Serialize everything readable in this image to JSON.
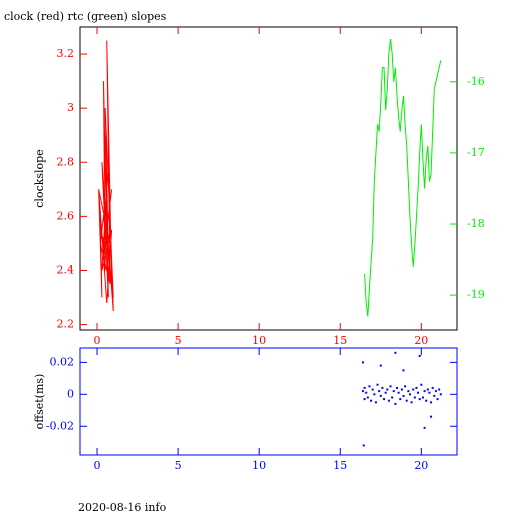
{
  "chart_data": [
    {
      "type": "line",
      "title": "clock (red) rtc (green) slopes",
      "ylabel": "clockslope",
      "xlim": [
        -1.05,
        22.2
      ],
      "xticks": [
        0,
        5,
        10,
        15,
        20
      ],
      "ylim": [
        2.18,
        3.3
      ],
      "yticks": [
        2.2,
        2.4,
        2.6,
        2.8,
        3,
        3.2
      ],
      "y2lim": [
        -19.49,
        -15.23
      ],
      "y2ticks": [
        -19,
        -18,
        -17,
        -16
      ],
      "axis_color": "red",
      "y2_color": "#00ee00",
      "frame_color": "#000000",
      "series": [
        {
          "color": "red",
          "x": [
            0.1,
            0.3,
            0.2,
            0.5,
            0.4,
            0.6,
            0.5,
            0.7,
            0.3,
            0.8,
            0.6,
            0.9,
            0.2,
            0.7,
            0.5,
            1.0,
            0.4,
            0.8,
            0.1,
            0.6,
            0.9,
            0.3,
            0.7,
            1.0,
            0.5,
            0.2,
            0.8,
            0.6,
            0.4,
            0.9
          ],
          "values": [
            2.7,
            2.3,
            2.6,
            2.4,
            3.1,
            2.5,
            2.9,
            2.3,
            2.8,
            2.4,
            3.25,
            2.35,
            2.55,
            2.45,
            3.0,
            2.3,
            2.6,
            2.5,
            2.7,
            2.28,
            2.55,
            2.4,
            2.8,
            2.25,
            2.65,
            2.5,
            2.35,
            2.6,
            2.45,
            2.7
          ]
        },
        {
          "color": "#00ee00",
          "axis": "y2",
          "x": [
            16.5,
            16.6,
            16.7,
            16.8,
            17.0,
            17.1,
            17.2,
            17.3,
            17.4,
            17.5,
            17.6,
            17.7,
            17.8,
            17.9,
            18.0,
            18.1,
            18.2,
            18.3,
            18.4,
            18.5,
            18.6,
            18.7,
            18.8,
            18.9,
            19.0,
            19.1,
            19.2,
            19.3,
            19.4,
            19.5,
            19.6,
            19.7,
            19.8,
            19.9,
            20.0,
            20.1,
            20.2,
            20.3,
            20.4,
            20.5,
            20.6,
            20.7,
            20.8,
            20.9,
            21.0,
            21.1,
            21.2
          ],
          "values": [
            -18.7,
            -19.1,
            -19.3,
            -18.9,
            -18.2,
            -17.4,
            -17.0,
            -16.6,
            -16.7,
            -16.3,
            -15.8,
            -15.8,
            -16.4,
            -16.1,
            -15.6,
            -15.4,
            -15.6,
            -16.0,
            -15.8,
            -16.2,
            -16.5,
            -16.7,
            -16.4,
            -16.2,
            -16.6,
            -16.9,
            -17.4,
            -17.9,
            -18.3,
            -18.6,
            -18.3,
            -17.9,
            -17.5,
            -17.0,
            -16.6,
            -17.1,
            -17.5,
            -17.1,
            -16.9,
            -17.4,
            -17.3,
            -16.7,
            -16.1,
            -16.0,
            -15.9,
            -15.8,
            -15.7
          ]
        }
      ]
    },
    {
      "type": "scatter",
      "ylabel": "offset(ms)",
      "xlim": [
        -1.05,
        22.2
      ],
      "xticks": [
        0,
        5,
        10,
        15,
        20
      ],
      "ylim": [
        -0.038,
        0.029
      ],
      "yticks": [
        -0.02,
        0,
        0.02
      ],
      "axis_color": "blue",
      "frame_color": "blue",
      "series": [
        {
          "color": "blue",
          "x": [
            16.4,
            16.5,
            16.5,
            16.6,
            16.7,
            16.8,
            16.9,
            17.0,
            17.1,
            17.2,
            17.3,
            17.4,
            17.5,
            17.6,
            17.7,
            17.8,
            17.9,
            18.0,
            18.1,
            18.2,
            18.3,
            18.4,
            18.5,
            18.6,
            18.7,
            18.8,
            18.9,
            19.0,
            19.1,
            19.2,
            19.3,
            19.4,
            19.5,
            19.6,
            19.7,
            19.8,
            19.9,
            20.0,
            20.1,
            20.2,
            20.3,
            20.4,
            20.5,
            20.6,
            20.7,
            20.8,
            20.9,
            21.0,
            21.1,
            21.2,
            16.4,
            17.5,
            18.4,
            19.9,
            20.6,
            16.45,
            18.9,
            20.2
          ],
          "values": [
            0.002,
            -0.003,
            0.004,
            0.001,
            -0.002,
            0.005,
            -0.004,
            0.003,
            0.0,
            -0.005,
            0.006,
            0.002,
            -0.001,
            0.004,
            -0.003,
            0.001,
            0.003,
            -0.004,
            0.005,
            -0.002,
            0.002,
            -0.006,
            0.004,
            0.001,
            -0.003,
            0.003,
            -0.001,
            0.005,
            -0.004,
            0.002,
            0.0,
            -0.005,
            0.003,
            -0.002,
            0.004,
            0.001,
            -0.003,
            0.006,
            -0.002,
            0.002,
            -0.004,
            0.003,
            0.001,
            -0.005,
            0.004,
            -0.001,
            0.002,
            -0.003,
            0.003,
            0.0,
            0.02,
            0.018,
            0.026,
            0.024,
            -0.014,
            -0.032,
            0.015,
            -0.021
          ]
        }
      ]
    }
  ],
  "footer": "2020-08-16 info"
}
